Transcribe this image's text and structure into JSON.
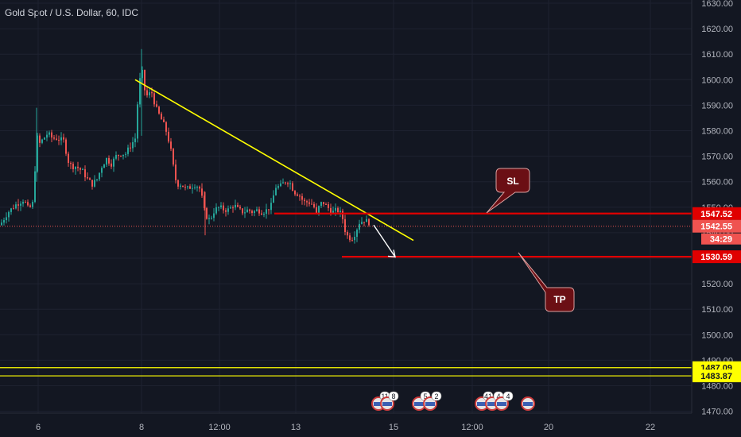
{
  "header": {
    "symbol_title": "Gold Spot / U.S. Dollar, 60, IDC"
  },
  "colors": {
    "background": "#131722",
    "grid": "#1e2230",
    "axis_text": "#b2b5be",
    "up": "#26a69a",
    "down": "#ef5350",
    "trendline": "#ffff00",
    "level_line": "#e00000",
    "callout_fill": "#6b0f14",
    "callout_stroke": "#d9a0a0",
    "horizontal_line": "#ffff00",
    "arrow": "#ffffff"
  },
  "chart_data": {
    "type": "candlestick",
    "title": "Gold Spot / U.S. Dollar, 60, IDC",
    "ylim": [
      1467,
      1630
    ],
    "y_ticks": [
      1630,
      1620,
      1610,
      1600,
      1590,
      1580,
      1570,
      1560,
      1550,
      1540,
      1530,
      1520,
      1510,
      1500,
      1490,
      1480,
      1470
    ],
    "y_tick_labels": [
      "1630.00",
      "1620.00",
      "1610.00",
      "1600.00",
      "1590.00",
      "1580.00",
      "1570.00",
      "1560.00",
      "1550.00",
      "1540.00",
      "1530.00",
      "1520.00",
      "1510.00",
      "1500.00",
      "1490.00",
      "1480.00",
      "1470.00"
    ],
    "x_ticks": [
      "6",
      "8",
      "12:00",
      "13",
      "15",
      "12:00",
      "20",
      "22"
    ],
    "x_tick_labels": [
      "6",
      "8",
      "12:00",
      "13",
      "15",
      "12:00",
      "20",
      "22"
    ],
    "grid": true,
    "price_path": [
      [
        0,
        1543
      ],
      [
        10,
        1548
      ],
      [
        20,
        1551
      ],
      [
        30,
        1553
      ],
      [
        36,
        1549
      ],
      [
        42,
        1552
      ],
      [
        46,
        1578
      ],
      [
        50,
        1575
      ],
      [
        55,
        1577
      ],
      [
        60,
        1579
      ],
      [
        66,
        1577
      ],
      [
        72,
        1577
      ],
      [
        80,
        1576
      ],
      [
        86,
        1568
      ],
      [
        90,
        1566
      ],
      [
        96,
        1566
      ],
      [
        104,
        1564
      ],
      [
        110,
        1561
      ],
      [
        116,
        1559
      ],
      [
        122,
        1561
      ],
      [
        128,
        1566
      ],
      [
        134,
        1569
      ],
      [
        140,
        1567
      ],
      [
        146,
        1570
      ],
      [
        152,
        1571
      ],
      [
        158,
        1571
      ],
      [
        164,
        1574
      ],
      [
        170,
        1577
      ],
      [
        174,
        1595
      ],
      [
        178,
        1605
      ],
      [
        182,
        1596
      ],
      [
        186,
        1593
      ],
      [
        190,
        1596
      ],
      [
        196,
        1589
      ],
      [
        202,
        1585
      ],
      [
        208,
        1581
      ],
      [
        214,
        1574
      ],
      [
        218,
        1566
      ],
      [
        222,
        1559
      ],
      [
        228,
        1559
      ],
      [
        234,
        1557
      ],
      [
        240,
        1558
      ],
      [
        246,
        1559
      ],
      [
        252,
        1557
      ],
      [
        258,
        1547
      ],
      [
        264,
        1545
      ],
      [
        270,
        1549
      ],
      [
        276,
        1550
      ],
      [
        282,
        1549
      ],
      [
        288,
        1549
      ],
      [
        294,
        1551
      ],
      [
        300,
        1549
      ],
      [
        306,
        1548
      ],
      [
        312,
        1549
      ],
      [
        318,
        1548
      ],
      [
        324,
        1549
      ],
      [
        330,
        1548
      ],
      [
        336,
        1549
      ],
      [
        342,
        1551
      ],
      [
        346,
        1558
      ],
      [
        352,
        1558
      ],
      [
        358,
        1560
      ],
      [
        364,
        1560
      ],
      [
        370,
        1556
      ],
      [
        376,
        1555
      ],
      [
        382,
        1552
      ],
      [
        388,
        1552
      ],
      [
        394,
        1551
      ],
      [
        398,
        1547
      ],
      [
        402,
        1551
      ],
      [
        406,
        1552
      ],
      [
        412,
        1550
      ],
      [
        418,
        1548
      ],
      [
        424,
        1549
      ],
      [
        430,
        1547
      ],
      [
        434,
        1541
      ],
      [
        438,
        1538
      ],
      [
        444,
        1538
      ],
      [
        448,
        1541
      ],
      [
        452,
        1544
      ],
      [
        458,
        1545
      ],
      [
        464,
        1544
      ],
      [
        468,
        1543
      ]
    ],
    "trendline": {
      "from": [
        170,
        1600
      ],
      "to": [
        520,
        1537
      ]
    },
    "arrow": {
      "from": [
        470,
        1543
      ],
      "to": [
        497,
        1530.5
      ]
    },
    "levels": [
      {
        "name": "SL",
        "price": 1547.52,
        "label": "1547.52",
        "x_start": 345
      },
      {
        "name": "TP",
        "price": 1530.59,
        "label": "1530.59",
        "x_start": 430
      }
    ],
    "horizontal_lines": [
      {
        "price": 1487.09,
        "label": "1487.09"
      },
      {
        "price": 1483.87,
        "label": "1483.87"
      }
    ],
    "current_price": {
      "price": 1542.55,
      "label": "1542.55",
      "countdown": "34:29"
    },
    "callouts": [
      {
        "text": "SL",
        "target_price": 1547.52
      },
      {
        "text": "TP",
        "target_price": 1530.59
      }
    ],
    "event_markers": [
      {
        "text": "11"
      },
      {
        "text": "8"
      },
      {
        "text": "5"
      },
      {
        "text": "2"
      },
      {
        "text": "41"
      },
      {
        "text": "4"
      },
      {
        "text": "4"
      }
    ]
  }
}
